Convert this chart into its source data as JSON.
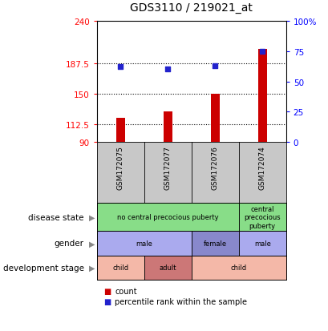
{
  "title": "GDS3110 / 219021_at",
  "samples": [
    "GSM172075",
    "GSM172077",
    "GSM172076",
    "GSM172074"
  ],
  "bar_values": [
    120,
    128,
    150,
    205
  ],
  "dot_values": [
    62,
    60,
    63,
    75
  ],
  "left_ylim": [
    90,
    240
  ],
  "left_yticks": [
    90,
    112.5,
    150,
    187.5,
    240
  ],
  "left_ytick_labels": [
    "90",
    "112.5",
    "150",
    "187.5",
    "240"
  ],
  "right_yticks": [
    0,
    25,
    50,
    75,
    100
  ],
  "right_ytick_labels": [
    "0",
    "25",
    "50",
    "75",
    "100%"
  ],
  "bar_color": "#cc0000",
  "dot_color": "#2222cc",
  "grid_dotted_color": "#000000",
  "disease_state_cells": [
    {
      "text": "no central precocious puberty",
      "span": 3,
      "color": "#88dd88"
    },
    {
      "text": "central\nprecocious\npuberty",
      "span": 1,
      "color": "#88dd88"
    }
  ],
  "gender_cells": [
    {
      "text": "male",
      "span": 2,
      "color": "#aaaaee"
    },
    {
      "text": "female",
      "span": 1,
      "color": "#8888cc"
    },
    {
      "text": "male",
      "span": 1,
      "color": "#aaaaee"
    }
  ],
  "dev_stage_cells": [
    {
      "text": "child",
      "span": 1,
      "color": "#f4b8a8"
    },
    {
      "text": "adult",
      "span": 1,
      "color": "#cc7777"
    },
    {
      "text": "child",
      "span": 2,
      "color": "#f4b8a8"
    }
  ],
  "row_labels": [
    "disease state",
    "gender",
    "development stage"
  ],
  "legend_count_color": "#cc0000",
  "legend_dot_color": "#2222cc",
  "sample_bg_color": "#c8c8c8",
  "plot_bg_color": "#ffffff"
}
